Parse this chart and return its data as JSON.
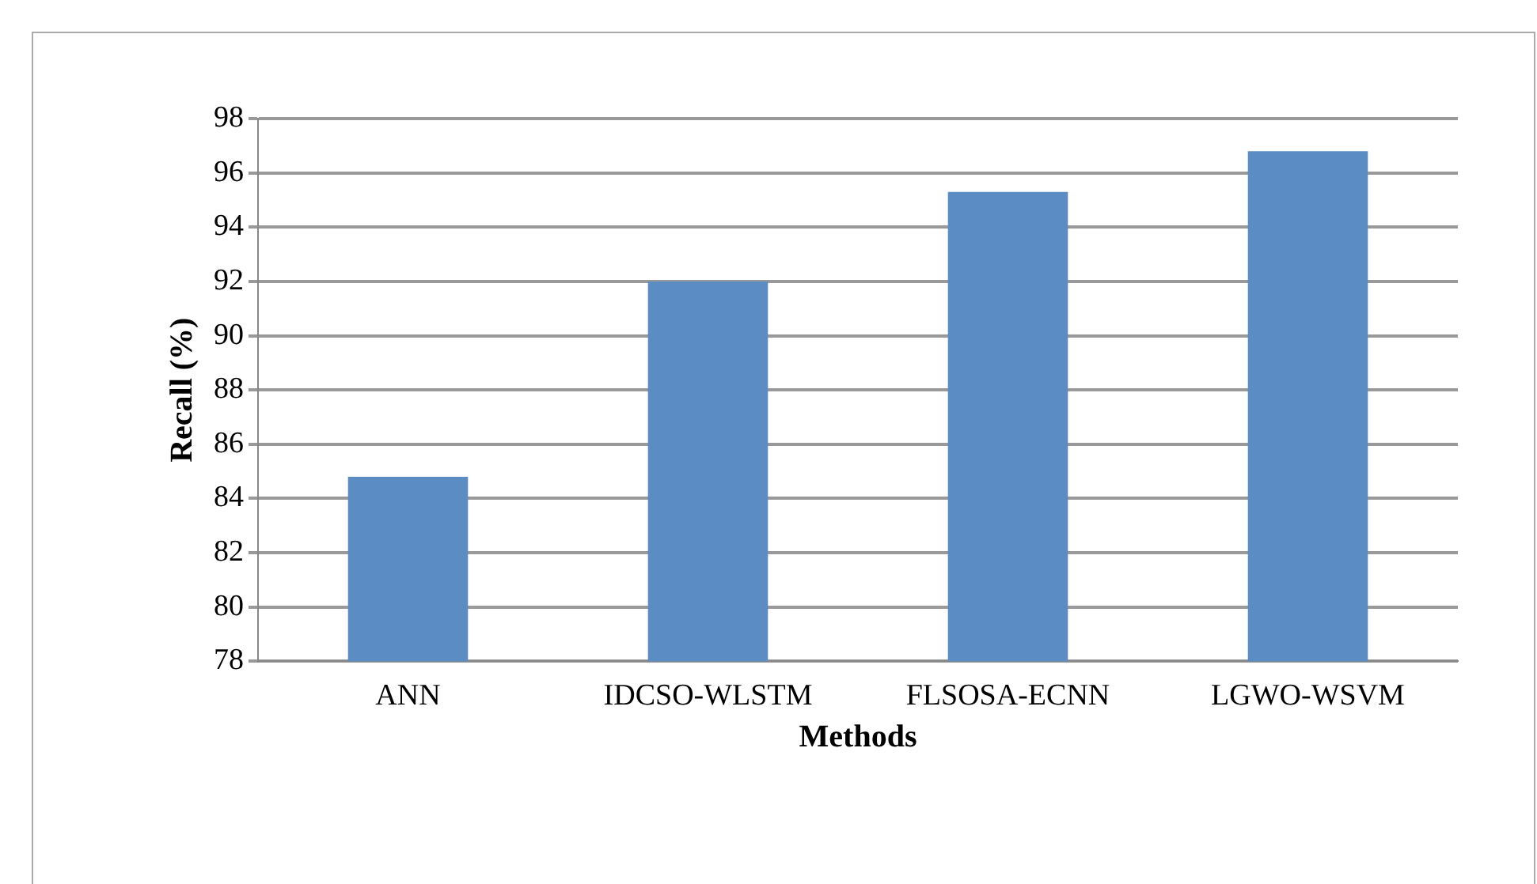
{
  "chart_data": {
    "type": "bar",
    "xlabel": "Methods",
    "ylabel": "Recall (%)",
    "categories": [
      "ANN",
      "IDCSO-WLSTM",
      "FLSOSA-ECNN",
      "LGWO-WSVM"
    ],
    "values": [
      84.8,
      92.0,
      95.3,
      96.8
    ],
    "color": "#5b8cc4",
    "ylim": [
      78,
      98
    ],
    "yticks": [
      78,
      80,
      82,
      84,
      86,
      88,
      90,
      92,
      94,
      96,
      98
    ],
    "grid": "y",
    "legend": false
  }
}
